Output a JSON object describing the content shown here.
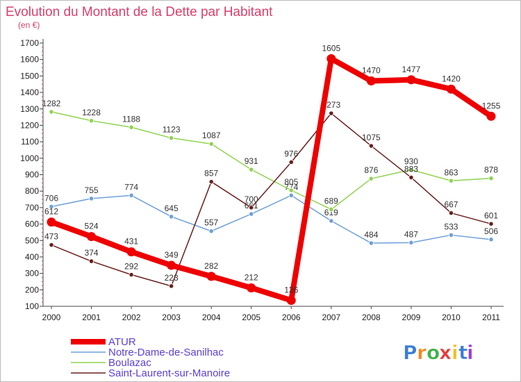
{
  "chart_data": {
    "type": "line",
    "title": "Evolution du Montant de la Dette par Habitant",
    "subtitle": "(en €)",
    "xlabel": "",
    "ylabel": "",
    "categories": [
      "2000",
      "2001",
      "2002",
      "2003",
      "2004",
      "2005",
      "2006",
      "2007",
      "2008",
      "2009",
      "2010",
      "2011"
    ],
    "ylim": [
      100,
      1700
    ],
    "yticks": [
      100,
      200,
      300,
      400,
      500,
      600,
      700,
      800,
      900,
      1000,
      1100,
      1200,
      1300,
      1400,
      1500,
      1600,
      1700
    ],
    "grid": false,
    "legend_position": "bottom-left",
    "series": [
      {
        "name": "ATUR",
        "color": "#ee0000",
        "values": [
          612,
          524,
          431,
          349,
          282,
          212,
          136,
          1605,
          1470,
          1477,
          1420,
          1255
        ],
        "thick": true
      },
      {
        "name": "Notre-Dame-de-Sanilhac",
        "color": "#6fa0d8",
        "values": [
          706,
          755,
          774,
          645,
          557,
          661,
          774,
          619,
          484,
          487,
          533,
          506
        ],
        "thick": false
      },
      {
        "name": "Boulazac",
        "color": "#8fd34f",
        "values": [
          1282,
          1228,
          1188,
          1123,
          1087,
          931,
          805,
          689,
          876,
          930,
          863,
          878
        ],
        "thick": false
      },
      {
        "name": "Saint-Laurent-sur-Manoire",
        "color": "#6a1f1f",
        "values": [
          473,
          374,
          292,
          223,
          857,
          700,
          976,
          1273,
          1075,
          883,
          667,
          601
        ],
        "thick": false
      }
    ]
  },
  "brand": {
    "text": "Proxiti",
    "letters": [
      "P",
      "r",
      "o",
      "x",
      "i",
      "t",
      "i"
    ],
    "colors": [
      "#3a7fd5",
      "#f28a1c",
      "#3fb24a",
      "#e83a3a",
      "#f2c21c",
      "#3a7fd5",
      "#9b3fd0"
    ]
  }
}
